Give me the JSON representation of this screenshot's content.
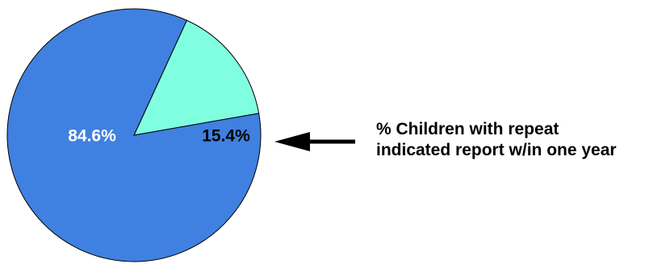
{
  "chart_data": {
    "type": "pie",
    "title": "",
    "slices": [
      {
        "label": "84.6%",
        "value": 84.6,
        "color": "#4080e0"
      },
      {
        "label": "15.4%",
        "value": 15.4,
        "color": "#80ffe0"
      }
    ],
    "label_colors": [
      "#ffffff",
      "#000000"
    ],
    "annotation": {
      "line1": "% Children with repeat",
      "line2": "indicated report w/in one year"
    }
  }
}
